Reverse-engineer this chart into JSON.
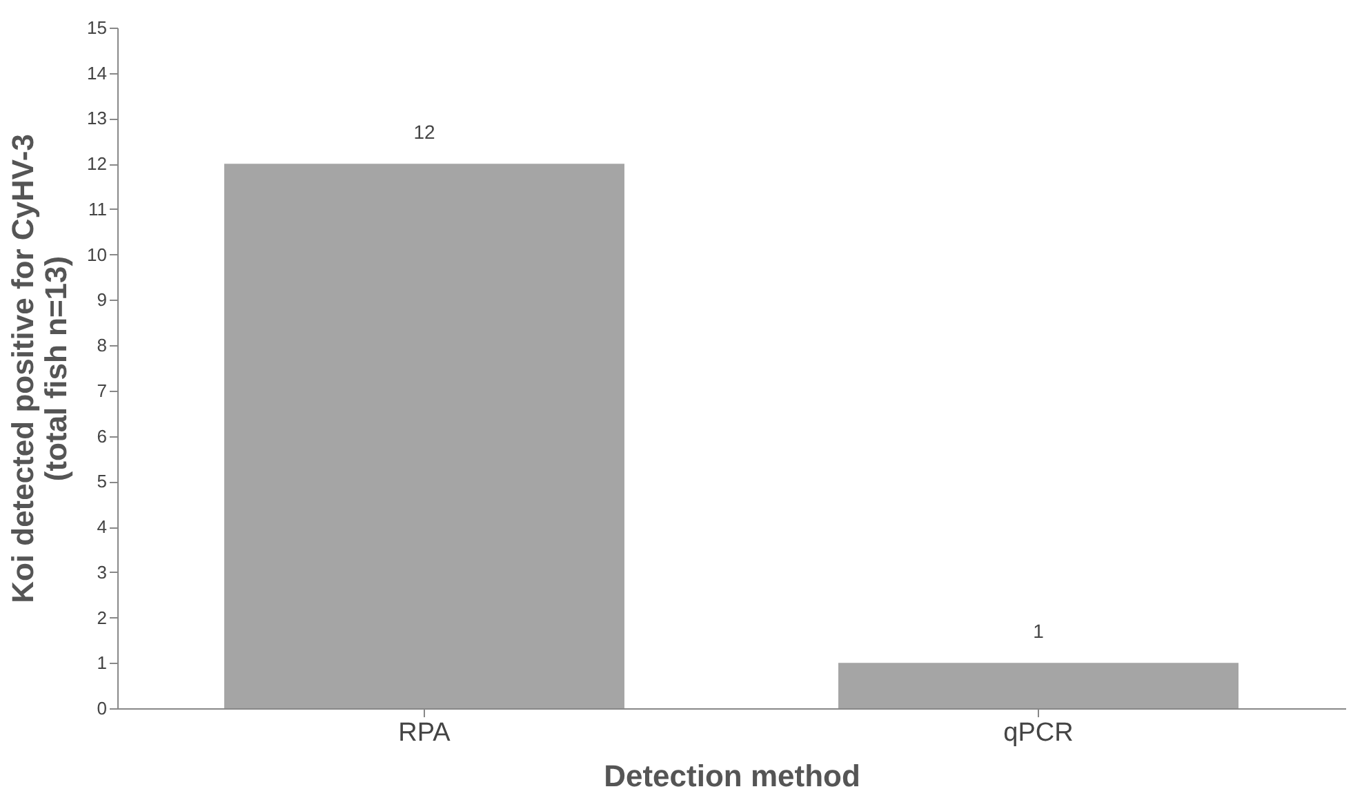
{
  "chart_data": {
    "type": "bar",
    "xlabel": "Detection method",
    "ylabel": "Koi detected positive for CyHV-3\n(total fish n=13)",
    "categories": [
      "RPA",
      "qPCR"
    ],
    "values": [
      12,
      1
    ],
    "color": "#a5a5a5",
    "ylim": [
      0,
      15
    ],
    "yticks": [
      0,
      1,
      2,
      3,
      4,
      5,
      6,
      7,
      8,
      9,
      10,
      11,
      12,
      13,
      14,
      15
    ],
    "data_labels": true,
    "grid": false
  }
}
